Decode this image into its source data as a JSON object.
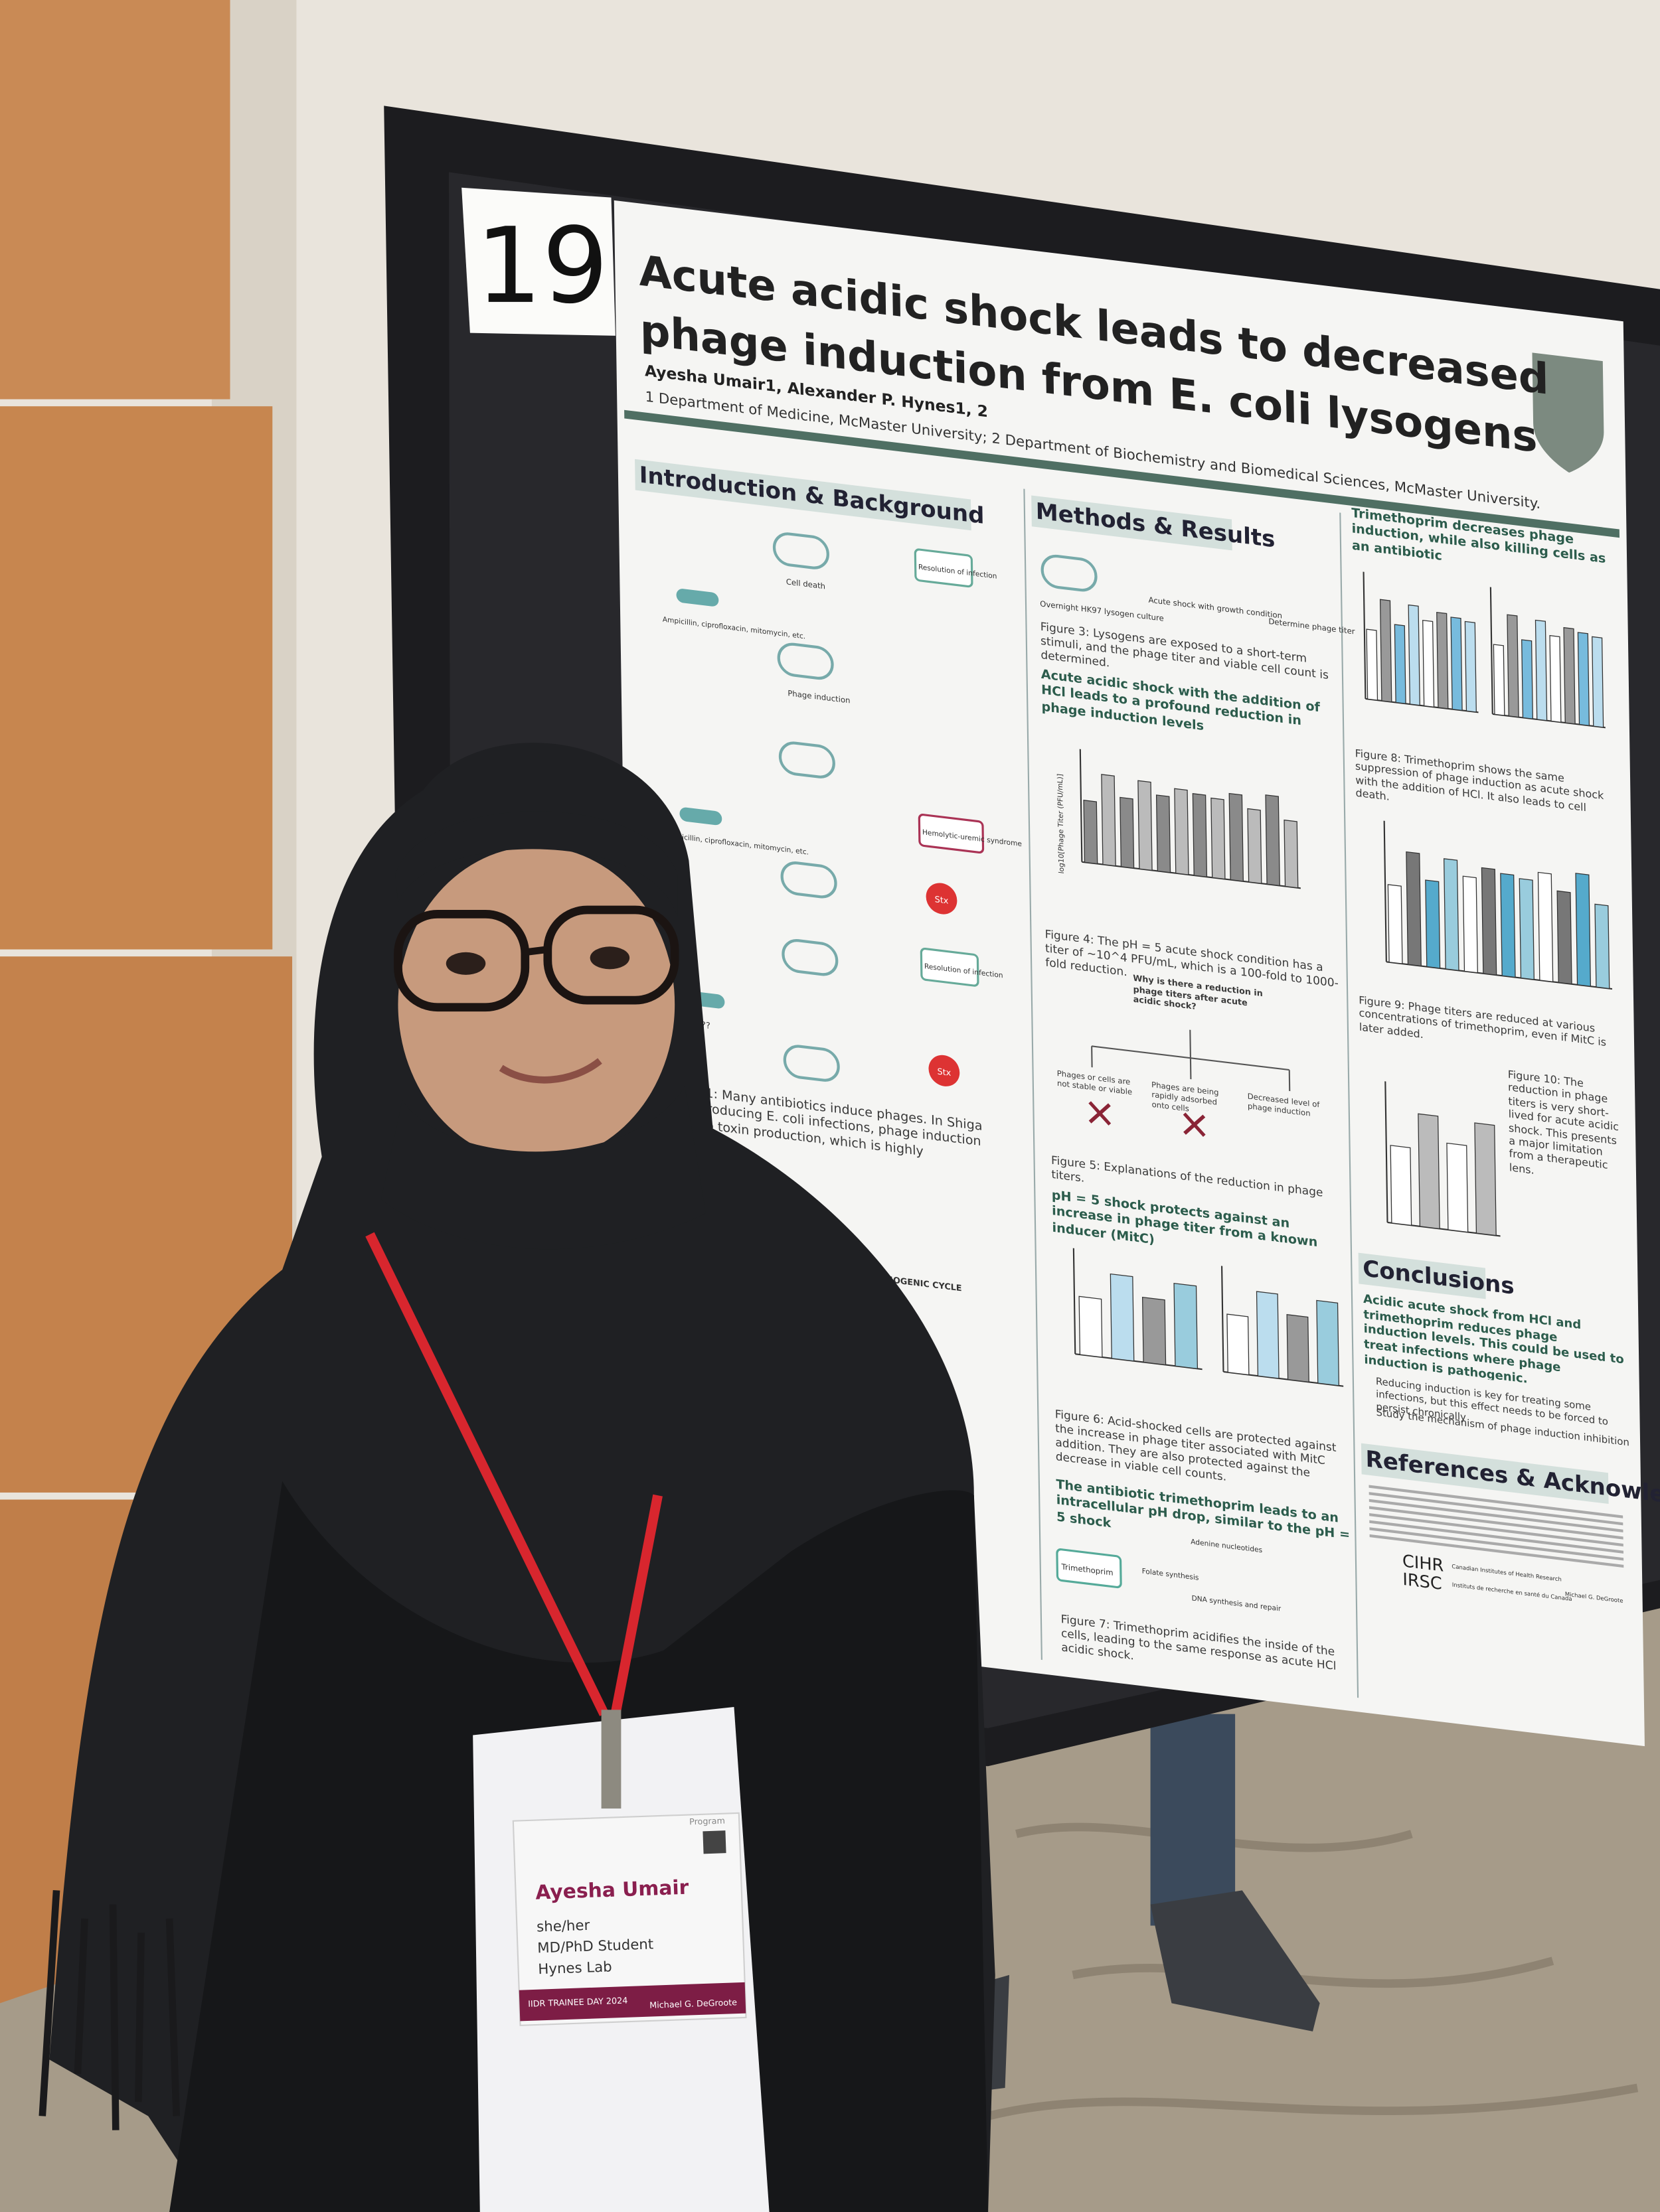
{
  "poster": {
    "number": "19",
    "title": [
      "Acute acidic shock leads to decreased",
      "phage induction from E. coli lysogens"
    ],
    "authors": "Ayesha Umair1, Alexander P. Hynes1, 2",
    "affiliations": "1 Department of Medicine, McMaster University; 2 Department of Biochemistry and Biomedical Sciences, McMaster University.",
    "introduction": {
      "heading": "Introduction & Background",
      "labels": [
        "Cell death",
        "Resolution of infection",
        "Ampicillin, ciprofloxacin, mitomycin, etc.",
        "Phage induction",
        "Ampicillin, ciprofloxacin, mitomycin, etc.",
        "Hemolytic-uremic syndrome",
        "Stx",
        "Resolution of infection",
        "???",
        "Stx",
        "LYSOGENIC CYCLE"
      ],
      "figure1": "Figure 1: Many antibiotics induce phages. In Shiga toxin-producing E. coli infections, phage induction leads to toxin production, which is highly pathogenic."
    },
    "methods": {
      "heading": "Methods & Results",
      "diagram": [
        "Overnight HK97 lysogen culture",
        "Acute shock with growth condition",
        "Determine phage titer"
      ],
      "figure3": "Figure 3: Lysogens are exposed to a short-term stimuli, and the phage titer and viable cell count is determined.",
      "heading2": "Acute acidic shock with the addition of HCl leads to a profound reduction in phage induction levels",
      "axis_title": "log10[Phage Titer (PFU/mL)]",
      "figure4": "Figure 4: The pH = 5 acute shock condition has a titer of ~10^4 PFU/mL, which is a 100-fold to 1000-fold reduction.",
      "question": "Why is there a reduction in phage titers after acute acidic shock?",
      "options": [
        "Phages or cells are not stable or viable",
        "Phages are being rapidly adsorbed onto cells",
        "Decreased level of phage induction"
      ],
      "figure5": "Figure 5: Explanations of the reduction in phage titers.",
      "heading3": "pH = 5 shock protects against an increase in phage titer from a known inducer (MitC)",
      "figure6": "Figure 6: Acid-shocked cells are protected against the increase in phage titer associated with MitC addition. They are also protected against the decrease in viable cell counts.",
      "heading4": "The antibiotic trimethoprim leads to an intracellular pH drop, similar to the pH = 5 shock",
      "diagram7": [
        "Trimethoprim",
        "Folate synthesis",
        "Adenine nucleotides",
        "DNA synthesis and repair"
      ],
      "figure7": "Figure 7: Trimethoprim acidifies the inside of the cells, leading to the same response as acute HCl acidic shock."
    },
    "results": {
      "heading": "Trimethoprim decreases phage induction, while also killing cells as an antibiotic",
      "figure8": "Figure 8: Trimethoprim shows the same suppression of phage induction as acute shock with the addition of HCl. It also leads to cell death.",
      "figure9": "Figure 9: Phage titers are reduced at various concentrations of trimethoprim, even if MitC is later added.",
      "figure10": "Figure 10: The reduction in phage titers is very short-lived for acute acidic shock. This presents a major limitation from a therapeutic lens."
    },
    "conclusions": {
      "heading": "Conclusions",
      "summary": "Acidic acute shock from HCl and trimethoprim reduces phage induction levels. This could be used to treat infections where phage induction is pathogenic.",
      "bullets": [
        "Reducing induction is key for treating some infections, but this effect needs to be forced to persist chronically",
        "Study the mechanism of phage induction inhibition"
      ]
    },
    "references": {
      "heading": "References & Acknowledgments"
    },
    "funders": [
      "CIHR",
      "IRSC",
      "Canadian Institutes of Health Research",
      "Instituts de recherche en santé du Canada",
      "Michael G. DeGroote"
    ]
  },
  "badge": {
    "tag": "Program",
    "name": "Ayesha Umair",
    "pronouns": "she/her",
    "role": "MD/PhD Student",
    "lab": "Hynes Lab",
    "event": "IIDR TRAINEE DAY 2024",
    "sponsor": "Michael G. DeGroote"
  }
}
